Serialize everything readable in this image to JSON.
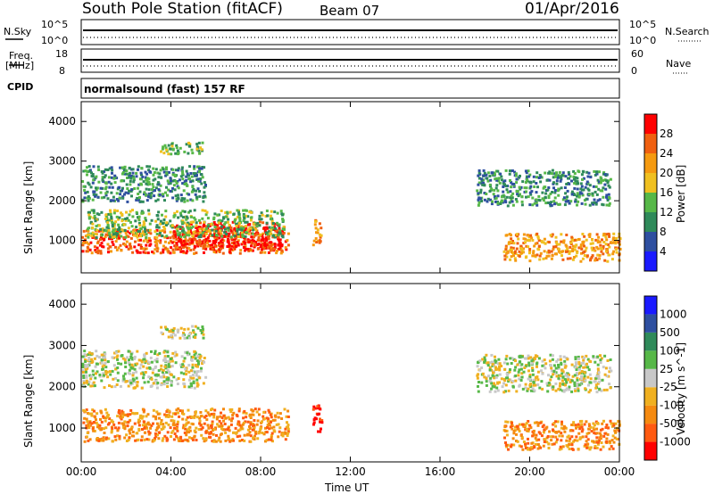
{
  "header": {
    "station": "South Pole Station (fitACF)",
    "beam": "Beam 07",
    "date": "01/Apr/2016"
  },
  "top_panels": {
    "nsky_label": "N.Sky",
    "nsky_ticks": [
      "10^5",
      "10^0"
    ],
    "nsearch_label": "N.Search",
    "nsearch_ticks": [
      "10^5",
      "10^0"
    ],
    "freq_label_1": "Freq.",
    "freq_label_2": "[MHz]",
    "freq_ticks": [
      "18",
      "8"
    ],
    "nave_label": "Nave",
    "nave_ticks": [
      "60",
      "0"
    ],
    "cpid_label": "CPID",
    "cpid_value": "normalsound (fast) 157 RF"
  },
  "colors": {
    "power_scale": [
      "#1a1aff",
      "#2e4fa0",
      "#2f8a5a",
      "#57b848",
      "#f0c020",
      "#f59a10",
      "#f06010",
      "#ff0000"
    ],
    "velocity_scale": [
      "#ff0000",
      "#ff5a10",
      "#f58a10",
      "#f0b020",
      "#c8c8c8",
      "#57b848",
      "#2f8a5a",
      "#2e4fa0",
      "#1a1aff"
    ]
  },
  "chart_data": [
    {
      "type": "heatmap",
      "name": "power",
      "xlabel": "Time UT",
      "ylabel": "Slant Range [km]",
      "colorbar_label": "Power [dB]",
      "colorbar_ticks": [
        "4",
        "8",
        "12",
        "16",
        "20",
        "24",
        "28"
      ],
      "colorbar_range": [
        0,
        30
      ],
      "x_ticks": [
        "00:00",
        "04:00",
        "08:00",
        "12:00",
        "16:00",
        "20:00",
        "00:00"
      ],
      "y_ticks": [
        "1000",
        "2000",
        "3000",
        "4000"
      ],
      "ylim": [
        180,
        4500
      ],
      "xlim_hours": [
        0,
        24
      ],
      "regions": [
        {
          "t0": 0.0,
          "t1": 9.2,
          "r0": 700,
          "r1": 1300,
          "value": 24
        },
        {
          "t0": 4.0,
          "t1": 9.0,
          "r0": 800,
          "r1": 1500,
          "value": 28
        },
        {
          "t0": 0.2,
          "t1": 9.0,
          "r0": 1100,
          "r1": 1800,
          "value": 12
        },
        {
          "t0": 0.0,
          "t1": 5.5,
          "r0": 2000,
          "r1": 2900,
          "value": 8
        },
        {
          "t0": 3.5,
          "t1": 5.5,
          "r0": 3200,
          "r1": 3500,
          "value": 12
        },
        {
          "t0": 10.3,
          "t1": 10.7,
          "r0": 900,
          "r1": 1600,
          "value": 22
        },
        {
          "t0": 17.6,
          "t1": 23.6,
          "r0": 1900,
          "r1": 2800,
          "value": 8
        },
        {
          "t0": 18.8,
          "t1": 24.0,
          "r0": 500,
          "r1": 1200,
          "value": 20
        }
      ]
    },
    {
      "type": "heatmap",
      "name": "velocity",
      "xlabel": "Time UT",
      "ylabel": "Slant Range [km]",
      "colorbar_label": "Velocity [m s^-1]",
      "colorbar_ticks": [
        "-1000",
        "-500",
        "-100",
        "-25",
        "25",
        "100",
        "500",
        "1000"
      ],
      "x_ticks": [
        "00:00",
        "04:00",
        "08:00",
        "12:00",
        "16:00",
        "20:00",
        "00:00"
      ],
      "y_ticks": [
        "1000",
        "2000",
        "3000",
        "4000"
      ],
      "ylim": [
        180,
        4500
      ],
      "xlim_hours": [
        0,
        24
      ],
      "regions": [
        {
          "t0": 0.0,
          "t1": 9.2,
          "r0": 700,
          "r1": 1500,
          "value": -300
        },
        {
          "t0": 0.0,
          "t1": 5.5,
          "r0": 2000,
          "r1": 2900,
          "value": 10
        },
        {
          "t0": 3.5,
          "t1": 5.5,
          "r0": 3200,
          "r1": 3500,
          "value": 10
        },
        {
          "t0": 10.3,
          "t1": 10.7,
          "r0": 900,
          "r1": 1600,
          "value": -900
        },
        {
          "t0": 17.6,
          "t1": 23.6,
          "r0": 1900,
          "r1": 2800,
          "value": 10
        },
        {
          "t0": 18.8,
          "t1": 24.0,
          "r0": 500,
          "r1": 1200,
          "value": -300
        }
      ]
    }
  ]
}
